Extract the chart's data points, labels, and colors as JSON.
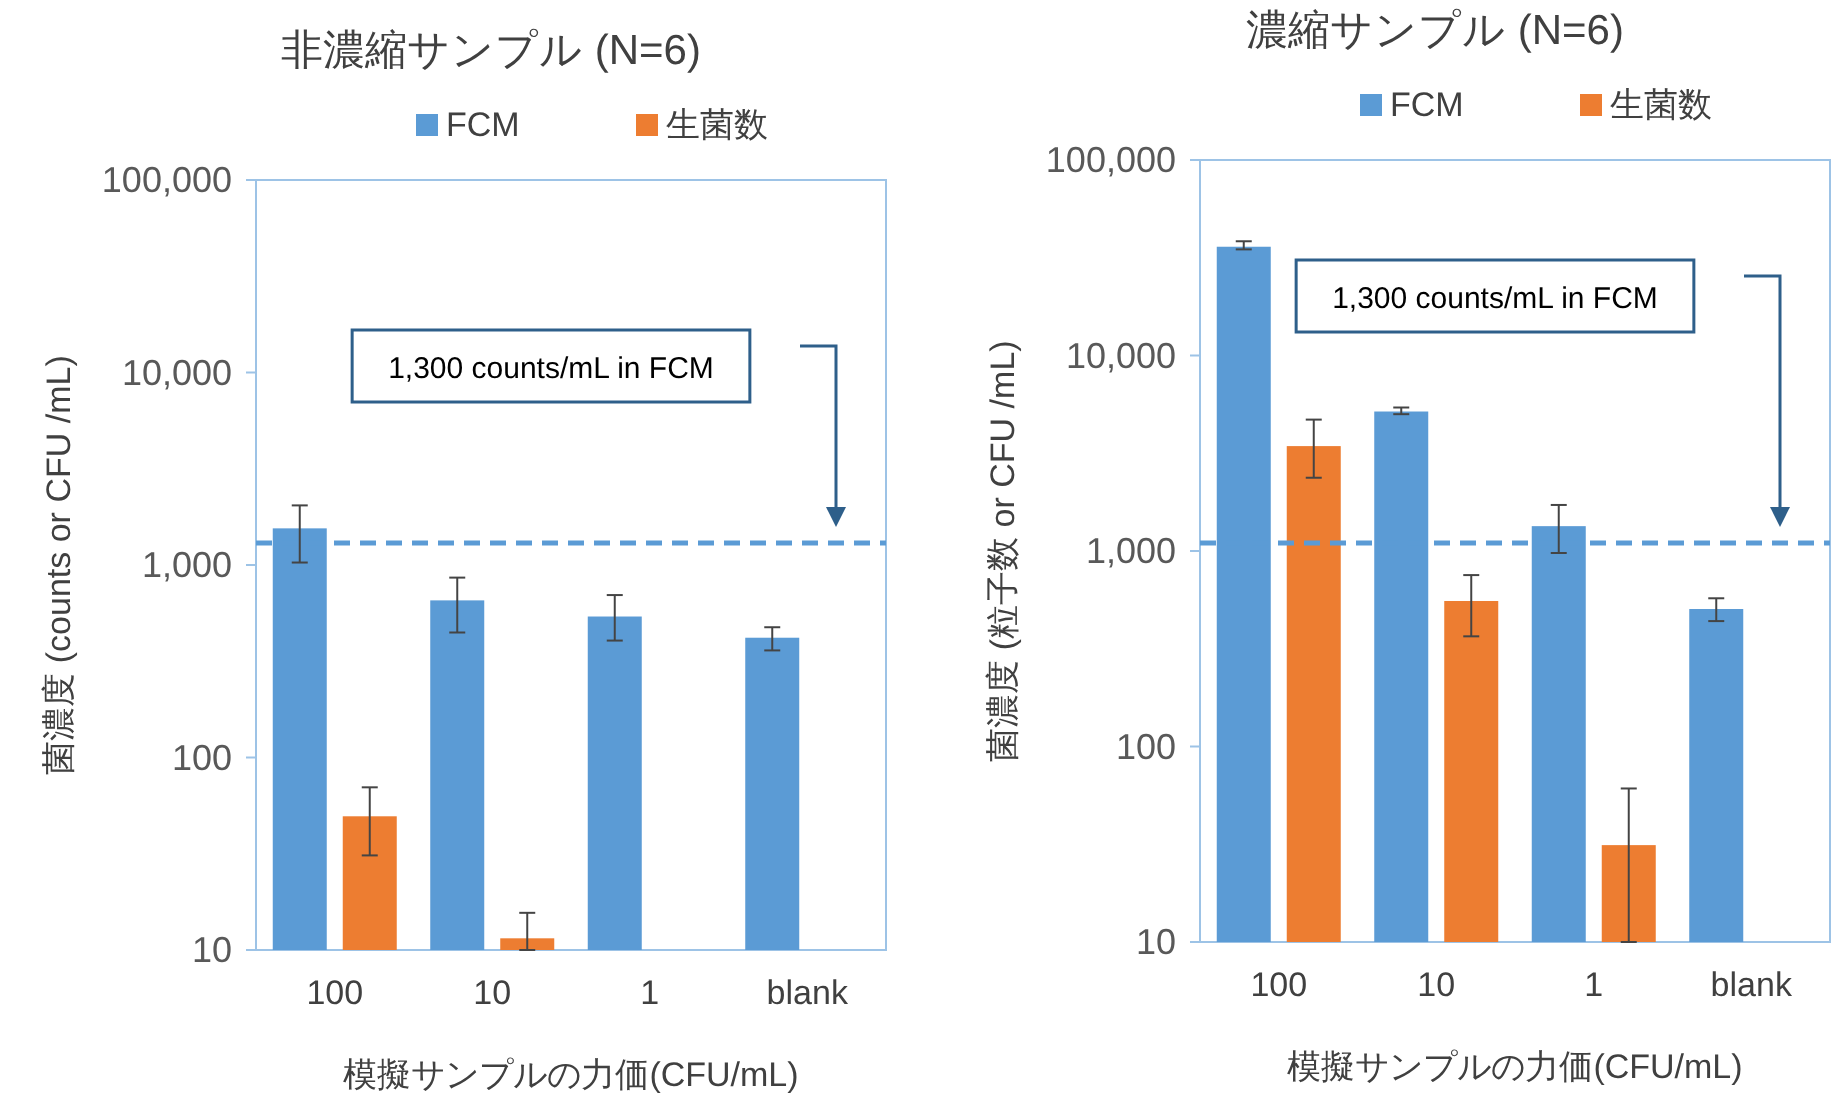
{
  "chart_data": [
    {
      "type": "bar",
      "title": "非濃縮サンプル (N=6)",
      "xlabel": "模擬サンプルの力価(CFU/mL)",
      "ylabel": "菌濃度 (counts or CFU /mL)",
      "categories": [
        "100",
        "10",
        "1",
        "blank"
      ],
      "log": true,
      "ylim": [
        10,
        100000
      ],
      "yticks": [
        {
          "value": 10,
          "label": "10"
        },
        {
          "value": 100,
          "label": "100"
        },
        {
          "value": 1000,
          "label": "1,000"
        },
        {
          "value": 10000,
          "label": "10,000"
        },
        {
          "value": 100000,
          "label": "100,000"
        }
      ],
      "legend": "top",
      "grid": false,
      "series": [
        {
          "name": "FCM",
          "color": "#5b9bd5",
          "values": [
            1550,
            655,
            540,
            419
          ],
          "errors": [
            [
              1030,
              2040
            ],
            [
              446,
              860
            ],
            [
              405,
              698
            ],
            [
              360,
              475
            ]
          ]
        },
        {
          "name": "生菌数",
          "color": "#ed7d31",
          "values": [
            49.5,
            11.5,
            null,
            null
          ],
          "errors": [
            [
              31,
              70
            ],
            [
              10,
              15.6
            ],
            null,
            null
          ]
        }
      ],
      "ref_lines": [
        {
          "axis": "y",
          "value": 1300,
          "color": "#5b9bd5",
          "line_style": "dashed"
        }
      ],
      "annotations": [
        "1,300 counts/mL in FCM"
      ]
    },
    {
      "type": "bar",
      "title": "濃縮サンプル (N=6)",
      "xlabel": "模擬サンプルの力価(CFU/mL)",
      "ylabel": "菌濃度 (粒子数 or CFU /mL)",
      "categories": [
        "100",
        "10",
        "1",
        "blank"
      ],
      "log": true,
      "ylim": [
        10,
        100000
      ],
      "yticks": [
        {
          "value": 10,
          "label": "10"
        },
        {
          "value": 100,
          "label": "100"
        },
        {
          "value": 1000,
          "label": "1,000"
        },
        {
          "value": 10000,
          "label": "10,000"
        },
        {
          "value": 100000,
          "label": "100,000"
        }
      ],
      "legend": "top",
      "grid": false,
      "series": [
        {
          "name": "FCM",
          "color": "#5b9bd5",
          "values": [
            36000,
            5170,
            1340,
            505
          ],
          "errors": [
            [
              34900,
              38400
            ],
            [
              5010,
              5420
            ],
            [
              977,
              1720
            ],
            [
              438,
              573
            ]
          ]
        },
        {
          "name": "生菌数",
          "color": "#ed7d31",
          "values": [
            3440,
            555,
            31.3,
            null
          ],
          "errors": [
            [
              2370,
              4700
            ],
            [
              366,
              753
            ],
            [
              10,
              61
            ],
            null
          ]
        }
      ],
      "ref_lines": [
        {
          "axis": "y",
          "value": 1100,
          "color": "#5b9bd5",
          "line_style": "dashed"
        }
      ],
      "annotations": [
        "1,300 counts/mL in FCM"
      ]
    }
  ]
}
